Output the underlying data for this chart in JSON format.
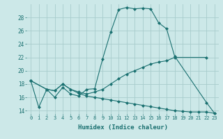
{
  "xlabel": "Humidex (Indice chaleur)",
  "background_color": "#cce8e8",
  "line_color": "#1a7070",
  "grid_color": "#a8cccc",
  "xlim": [
    -0.5,
    23.5
  ],
  "ylim": [
    13.5,
    30
  ],
  "xtick_labels": [
    "0",
    "1",
    "2",
    "3",
    "4",
    "5",
    "6",
    "7",
    "8",
    "9",
    "10",
    "11",
    "12",
    "13",
    "14",
    "15",
    "16",
    "17",
    "18",
    "19",
    "20",
    "21",
    "22",
    "23"
  ],
  "ytick_values": [
    14,
    16,
    18,
    20,
    22,
    24,
    26,
    28
  ],
  "series": [
    {
      "x": [
        0,
        1,
        2,
        3,
        4,
        5,
        6,
        7,
        8,
        9,
        10,
        11,
        12,
        13,
        14,
        15,
        16,
        17,
        18,
        22,
        23
      ],
      "y": [
        18.5,
        14.5,
        17.2,
        16.0,
        17.5,
        16.5,
        16.2,
        17.2,
        17.3,
        21.8,
        25.8,
        29.2,
        29.5,
        29.3,
        29.4,
        29.3,
        27.2,
        26.3,
        22.2,
        15.2,
        13.6
      ]
    },
    {
      "x": [
        0,
        2,
        3,
        4,
        5,
        6,
        7,
        8,
        9,
        10,
        11,
        12,
        13,
        14,
        15,
        16,
        17,
        18,
        22
      ],
      "y": [
        18.5,
        17.2,
        17.0,
        18.0,
        17.2,
        16.8,
        16.5,
        16.8,
        17.2,
        18.0,
        18.8,
        19.5,
        20.0,
        20.5,
        21.0,
        21.3,
        21.5,
        22.0,
        22.0
      ]
    },
    {
      "x": [
        0,
        2,
        3,
        4,
        5,
        6,
        7,
        8,
        9,
        10,
        11,
        12,
        13,
        14,
        15,
        16,
        17,
        18,
        19,
        20,
        21,
        22,
        23
      ],
      "y": [
        18.5,
        17.2,
        17.0,
        18.0,
        17.2,
        16.6,
        16.2,
        16.0,
        15.8,
        15.6,
        15.4,
        15.2,
        15.0,
        14.8,
        14.6,
        14.4,
        14.2,
        14.0,
        13.9,
        13.8,
        13.8,
        13.8,
        13.6
      ]
    }
  ]
}
